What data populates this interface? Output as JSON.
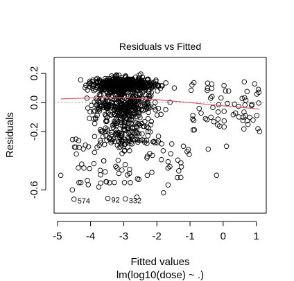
{
  "chart_data": {
    "type": "scatter",
    "title": "Residuals vs Fitted",
    "xlabel": "Fitted values",
    "xsublabel": "lm(log10(dose) ~ .)",
    "ylabel": "Residuals",
    "xlim": [
      -5.1,
      1.3
    ],
    "ylim": [
      -0.76,
      0.31
    ],
    "xticks": [
      -5,
      -4,
      -3,
      -2,
      -1,
      0,
      1
    ],
    "xtick_labels": [
      "-5",
      "-4",
      "-3",
      "-2",
      "-1",
      "0",
      "1"
    ],
    "yticks": [
      -0.6,
      -0.2,
      0.0,
      0.2
    ],
    "ytick_labels": [
      "-0.6",
      "-0.2",
      "0.0",
      "0.2"
    ],
    "zero_line": true,
    "grid": false,
    "smooth_color": "#DF536B",
    "smooth": {
      "x": [
        -4.9,
        -4.5,
        -4.0,
        -3.5,
        -3.0,
        -2.5,
        -2.0,
        -1.5,
        -1.0,
        -0.5,
        0.0,
        0.5,
        1.1
      ],
      "y": [
        0.025,
        0.028,
        0.032,
        0.034,
        0.033,
        0.028,
        0.02,
        0.01,
        0.0,
        -0.012,
        -0.022,
        -0.032,
        -0.045
      ]
    },
    "annotations": [
      {
        "label": "574",
        "x": -4.5,
        "y": -0.664
      },
      {
        "label": "92",
        "x": -3.48,
        "y": -0.658
      },
      {
        "label": "332",
        "x": -2.95,
        "y": -0.662
      }
    ],
    "outliers": {
      "x": [
        -4.5,
        -3.48,
        -2.95,
        -2.6,
        -1.8,
        -0.2,
        0.6,
        0.75,
        -4.9,
        -4.35,
        -4.2,
        -3.9,
        -3.6,
        -3.2,
        -2.8,
        -2.3,
        -1.2,
        0.1,
        1.05,
        0.9,
        -4.55,
        -3.75,
        -3.05,
        -2.15,
        -0.45,
        1.1
      ],
      "y": [
        -0.664,
        -0.658,
        -0.662,
        -0.65,
        -0.62,
        -0.5,
        -0.1,
        -0.15,
        -0.5,
        -0.55,
        -0.45,
        -0.42,
        -0.4,
        -0.45,
        -0.55,
        -0.38,
        -0.3,
        -0.3,
        -0.18,
        -0.12,
        -0.6,
        -0.58,
        -0.35,
        -0.48,
        -0.32,
        -0.2
      ]
    }
  }
}
